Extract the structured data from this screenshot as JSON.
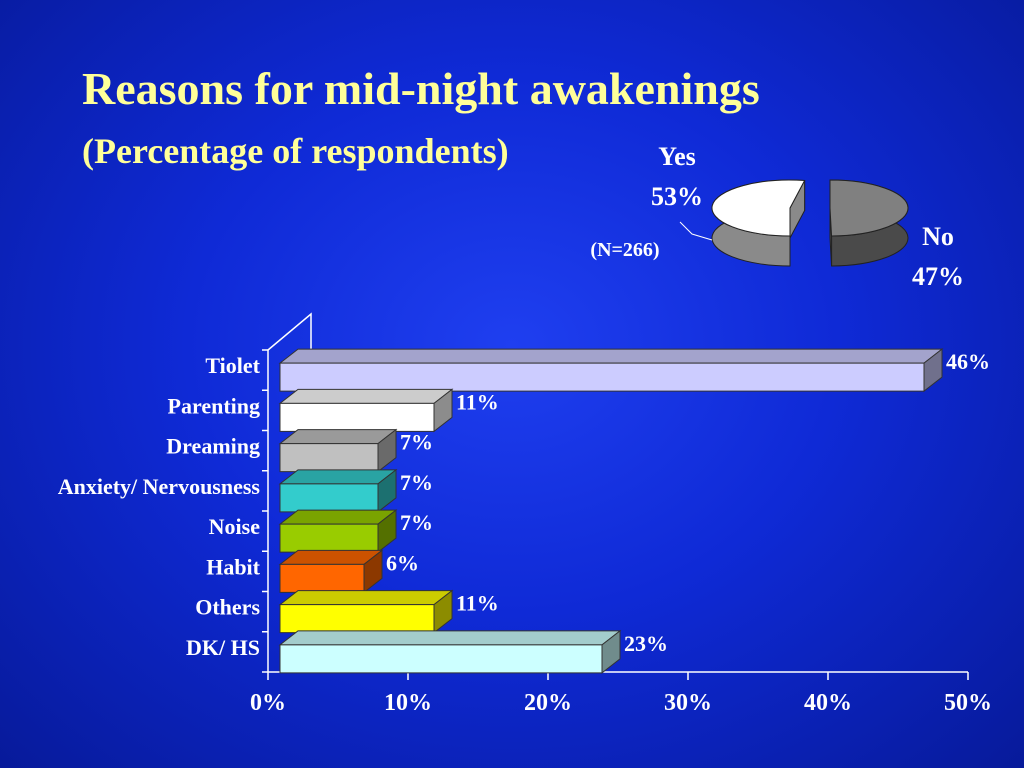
{
  "title": "Reasons for mid-night awakenings",
  "subtitle": "(Percentage of respondents)",
  "colors": {
    "background": "#0f2ad6",
    "title": "#ffff99",
    "text": "#ffffff",
    "axis": "#ffffff"
  },
  "chart_data": [
    {
      "type": "bar",
      "orientation": "horizontal",
      "categories": [
        "Tiolet",
        "Parenting",
        "Dreaming",
        "Anxiety/ Nervousness",
        "Noise",
        "Habit",
        "Others",
        "DK/ HS"
      ],
      "values": [
        46,
        11,
        7,
        7,
        7,
        6,
        11,
        23
      ],
      "data_labels": [
        "46%",
        "11%",
        "7%",
        "7%",
        "7%",
        "6%",
        "11%",
        "23%"
      ],
      "bar_colors": [
        "#ccccff",
        "#ffffff",
        "#c0c0c0",
        "#33cccc",
        "#99cc00",
        "#ff6600",
        "#ffff00",
        "#ccffff"
      ],
      "xlim": [
        0,
        50
      ],
      "x_ticks": [
        "0%",
        "10%",
        "20%",
        "30%",
        "40%",
        "50%"
      ],
      "grid": false,
      "style": "3d"
    },
    {
      "type": "pie",
      "slices": [
        {
          "label": "Yes",
          "value": 53,
          "value_label": "53%",
          "color": "#ffffff"
        },
        {
          "label": "No",
          "value": 47,
          "value_label": "47%",
          "color": "#808080"
        }
      ],
      "note": "(N=266)",
      "style": "3d exploded"
    }
  ]
}
